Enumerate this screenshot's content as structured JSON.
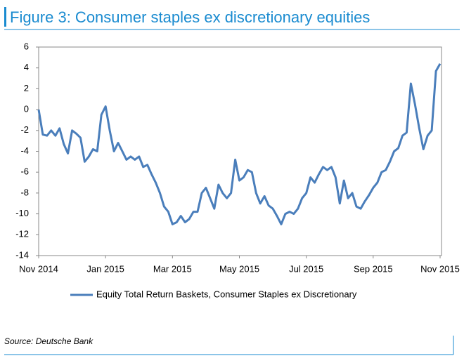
{
  "chart_data": {
    "type": "line",
    "title": "Figure 3: Consumer staples ex discretionary equities",
    "source": "Source: Deutsche Bank",
    "categories": [
      "Nov 2014",
      null,
      null,
      null,
      null,
      null,
      null,
      null,
      null,
      null,
      null,
      null,
      null,
      null,
      null,
      null,
      "Jan 2015",
      null,
      null,
      null,
      null,
      null,
      null,
      null,
      null,
      null,
      null,
      null,
      null,
      null,
      null,
      null,
      "Mar 2015",
      null,
      null,
      null,
      null,
      null,
      null,
      null,
      null,
      null,
      null,
      null,
      null,
      null,
      null,
      null,
      "May 2015",
      null,
      null,
      null,
      null,
      null,
      null,
      null,
      null,
      null,
      null,
      null,
      null,
      null,
      null,
      null,
      "Jul 2015",
      null,
      null,
      null,
      null,
      null,
      null,
      null,
      null,
      null,
      null,
      null,
      null,
      null,
      null,
      null,
      "Sep 2015",
      null,
      null,
      null,
      null,
      null,
      null,
      null,
      null,
      null,
      null,
      null,
      null,
      null,
      null,
      null,
      "Nov 2015"
    ],
    "series": [
      {
        "name": "Equity Total Return Baskets, Consumer Staples ex Discretionary",
        "color": "#4a7ebb",
        "values": [
          0,
          -2.4,
          -2.5,
          -2.0,
          -2.5,
          -1.8,
          -3.3,
          -4.2,
          -2.0,
          -2.3,
          -2.7,
          -5.0,
          -4.5,
          -3.8,
          -4.0,
          -0.5,
          0.3,
          -2.0,
          -4.0,
          -3.2,
          -4.0,
          -4.8,
          -4.5,
          -4.8,
          -4.5,
          -5.5,
          -5.3,
          -6.2,
          -7.0,
          -8.0,
          -9.3,
          -9.8,
          -11.0,
          -10.8,
          -10.2,
          -10.8,
          -10.5,
          -9.8,
          -9.8,
          -8.0,
          -7.5,
          -8.5,
          -9.5,
          -7.2,
          -8.0,
          -8.5,
          -8.0,
          -4.8,
          -6.8,
          -6.5,
          -5.8,
          -6.0,
          -8.0,
          -9.0,
          -8.3,
          -9.2,
          -9.5,
          -10.2,
          -11.0,
          -10.0,
          -9.8,
          -10.0,
          -9.5,
          -8.5,
          -8.0,
          -6.5,
          -7.0,
          -6.2,
          -5.5,
          -5.8,
          -5.5,
          -6.5,
          -9.0,
          -6.8,
          -8.5,
          -8.0,
          -9.3,
          -9.5,
          -8.8,
          -8.2,
          -7.5,
          -7.0,
          -6.0,
          -5.8,
          -5.0,
          -4.0,
          -3.7,
          -2.5,
          -2.2,
          2.5,
          0.5,
          -1.8,
          -3.8,
          -2.5,
          -2.0,
          3.7,
          4.4
        ]
      }
    ],
    "ylim": [
      -14,
      6
    ],
    "yticks": [
      -14,
      -12,
      -10,
      -8,
      -6,
      -4,
      -2,
      0,
      2,
      4,
      6
    ],
    "grid": false,
    "legend": "bottom"
  }
}
